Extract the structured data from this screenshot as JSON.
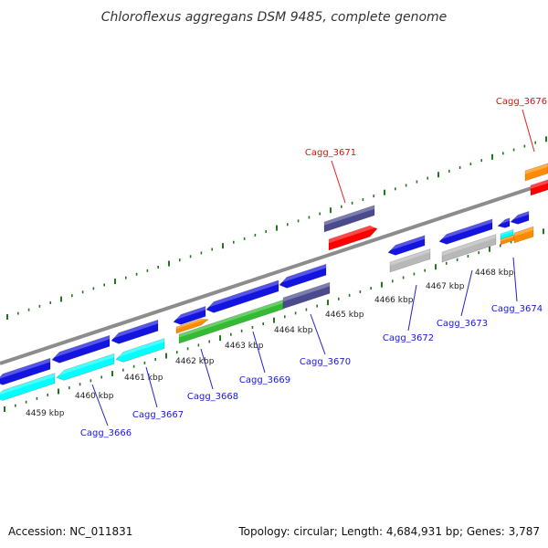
{
  "title": "Chloroflexus aggregans DSM 9485, complete genome",
  "footer": {
    "accession": "Accession: NC_011831",
    "summary": "Topology: circular; Length: 4,684,931 bp; Genes: 3,787"
  },
  "colors": {
    "backbone": "#8c8c8c",
    "tick": "#1f7a1f",
    "label_default": "#1a1acc",
    "label_highlight": "#e01010",
    "label_line_default": "#2222cc",
    "label_line_highlight": "#dd2222"
  },
  "ruler_ticks": [
    {
      "label": "4459 kbp"
    },
    {
      "label": "4460 kbp"
    },
    {
      "label": "4461 kbp"
    },
    {
      "label": "4462 kbp"
    },
    {
      "label": "4463 kbp"
    },
    {
      "label": "4464 kbp"
    },
    {
      "label": "4465 kbp"
    },
    {
      "label": "4466 kbp"
    },
    {
      "label": "4467 kbp"
    },
    {
      "label": "4468 kbp"
    }
  ],
  "gene_labels": [
    {
      "name": "Cagg_3666",
      "highlight": false
    },
    {
      "name": "Cagg_3667",
      "highlight": false
    },
    {
      "name": "Cagg_3668",
      "highlight": false
    },
    {
      "name": "Cagg_3669",
      "highlight": false
    },
    {
      "name": "Cagg_3670",
      "highlight": false
    },
    {
      "name": "Cagg_3671",
      "highlight": true
    },
    {
      "name": "Cagg_3672",
      "highlight": false
    },
    {
      "name": "Cagg_3673",
      "highlight": false
    },
    {
      "name": "Cagg_3674",
      "highlight": false
    },
    {
      "name": "Cagg_3676",
      "highlight": true
    }
  ]
}
